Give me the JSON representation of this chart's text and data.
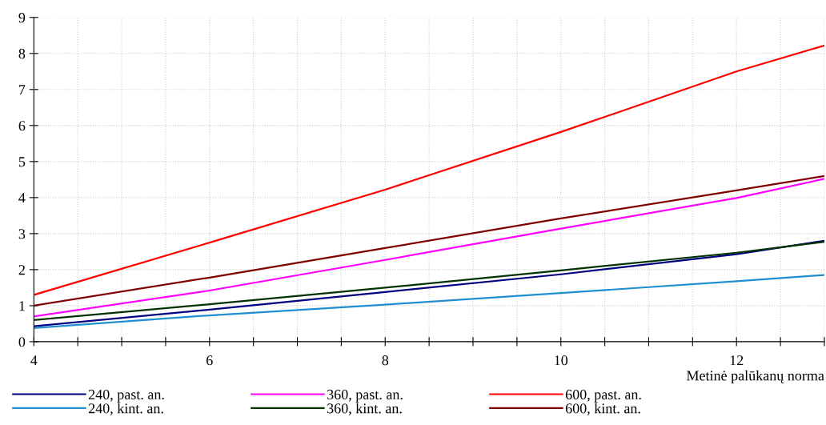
{
  "chart_data": {
    "type": "line",
    "xlabel": "Metinė palūkanų norma",
    "x": [
      4,
      6,
      8,
      10,
      12,
      13
    ],
    "series": [
      {
        "name": "240, past. an.",
        "color": "#000080",
        "values": [
          0.43,
          0.89,
          1.38,
          1.87,
          2.43,
          2.8
        ]
      },
      {
        "name": "240, kint. an.",
        "color": "#1f8fd0",
        "values": [
          0.38,
          0.73,
          1.03,
          1.35,
          1.68,
          1.85
        ]
      },
      {
        "name": "360, past. an.",
        "color": "#ff00ff",
        "values": [
          0.7,
          1.42,
          2.27,
          3.14,
          3.99,
          4.52
        ]
      },
      {
        "name": "360, kint. an.",
        "color": "#003300",
        "values": [
          0.6,
          1.04,
          1.5,
          1.98,
          2.47,
          2.77
        ]
      },
      {
        "name": "600, past. an.",
        "color": "#ff0000",
        "values": [
          1.3,
          2.75,
          4.22,
          5.82,
          7.5,
          8.22
        ]
      },
      {
        "name": "600, kint. an.",
        "color": "#800000",
        "values": [
          1.0,
          1.78,
          2.6,
          3.42,
          4.2,
          4.6
        ]
      }
    ],
    "xlim": [
      4,
      13
    ],
    "xticks": [
      4,
      {
        "value": 4.5,
        "label": null
      },
      {
        "value": 5,
        "label": null
      },
      {
        "value": 5.5,
        "label": null
      },
      6,
      {
        "value": 6.5,
        "label": null
      },
      {
        "value": 7,
        "label": null
      },
      {
        "value": 7.5,
        "label": null
      },
      8,
      {
        "value": 8.5,
        "label": null
      },
      {
        "value": 9,
        "label": null
      },
      {
        "value": 9.5,
        "label": null
      },
      10,
      {
        "value": 10.5,
        "label": null
      },
      {
        "value": 11,
        "label": null
      },
      {
        "value": 11.5,
        "label": null
      },
      12,
      {
        "value": 12.5,
        "label": null
      },
      {
        "value": 13,
        "label": null
      }
    ],
    "ylim": [
      0,
      9
    ],
    "yticks": [
      0,
      1,
      2,
      3,
      4,
      5,
      6,
      7,
      8,
      9
    ],
    "grid": true,
    "legend": "bottom",
    "marker": "none",
    "line_style": "solid"
  }
}
